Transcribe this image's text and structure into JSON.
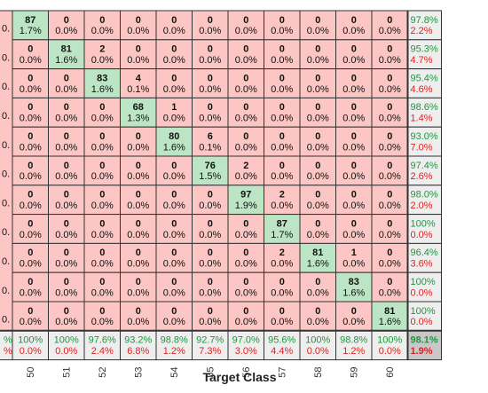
{
  "chart_data": {
    "type": "heatmap",
    "title": "",
    "xlabel": "Target Class",
    "ylabel": "",
    "x_tick_labels": [
      "50",
      "51",
      "52",
      "53",
      "54",
      "55",
      "56",
      "57",
      "58",
      "59",
      "60"
    ],
    "left_edge_cropped_text": "0.",
    "rows": [
      {
        "counts": [
          87,
          0,
          0,
          0,
          0,
          0,
          0,
          0,
          0,
          0,
          0
        ],
        "percents": [
          "1.7%",
          "0.0%",
          "0.0%",
          "0.0%",
          "0.0%",
          "0.0%",
          "0.0%",
          "0.0%",
          "0.0%",
          "0.0%",
          "0.0%"
        ],
        "summary": [
          "97.8%",
          "2.2%"
        ]
      },
      {
        "counts": [
          0,
          81,
          2,
          0,
          0,
          0,
          0,
          0,
          0,
          0,
          0
        ],
        "percents": [
          "0.0%",
          "1.6%",
          "0.0%",
          "0.0%",
          "0.0%",
          "0.0%",
          "0.0%",
          "0.0%",
          "0.0%",
          "0.0%",
          "0.0%"
        ],
        "summary": [
          "95.3%",
          "4.7%"
        ]
      },
      {
        "counts": [
          0,
          0,
          83,
          4,
          0,
          0,
          0,
          0,
          0,
          0,
          0
        ],
        "percents": [
          "0.0%",
          "0.0%",
          "1.6%",
          "0.1%",
          "0.0%",
          "0.0%",
          "0.0%",
          "0.0%",
          "0.0%",
          "0.0%",
          "0.0%"
        ],
        "summary": [
          "95.4%",
          "4.6%"
        ]
      },
      {
        "counts": [
          0,
          0,
          0,
          68,
          1,
          0,
          0,
          0,
          0,
          0,
          0
        ],
        "percents": [
          "0.0%",
          "0.0%",
          "0.0%",
          "1.3%",
          "0.0%",
          "0.0%",
          "0.0%",
          "0.0%",
          "0.0%",
          "0.0%",
          "0.0%"
        ],
        "summary": [
          "98.6%",
          "1.4%"
        ]
      },
      {
        "counts": [
          0,
          0,
          0,
          0,
          80,
          6,
          0,
          0,
          0,
          0,
          0
        ],
        "percents": [
          "0.0%",
          "0.0%",
          "0.0%",
          "0.0%",
          "1.6%",
          "0.1%",
          "0.0%",
          "0.0%",
          "0.0%",
          "0.0%",
          "0.0%"
        ],
        "summary": [
          "93.0%",
          "7.0%"
        ]
      },
      {
        "counts": [
          0,
          0,
          0,
          0,
          0,
          76,
          2,
          0,
          0,
          0,
          0
        ],
        "percents": [
          "0.0%",
          "0.0%",
          "0.0%",
          "0.0%",
          "0.0%",
          "1.5%",
          "0.0%",
          "0.0%",
          "0.0%",
          "0.0%",
          "0.0%"
        ],
        "summary": [
          "97.4%",
          "2.6%"
        ]
      },
      {
        "counts": [
          0,
          0,
          0,
          0,
          0,
          0,
          97,
          2,
          0,
          0,
          0
        ],
        "percents": [
          "0.0%",
          "0.0%",
          "0.0%",
          "0.0%",
          "0.0%",
          "0.0%",
          "1.9%",
          "0.0%",
          "0.0%",
          "0.0%",
          "0.0%"
        ],
        "summary": [
          "98.0%",
          "2.0%"
        ]
      },
      {
        "counts": [
          0,
          0,
          0,
          0,
          0,
          0,
          0,
          87,
          0,
          0,
          0
        ],
        "percents": [
          "0.0%",
          "0.0%",
          "0.0%",
          "0.0%",
          "0.0%",
          "0.0%",
          "0.0%",
          "1.7%",
          "0.0%",
          "0.0%",
          "0.0%"
        ],
        "summary": [
          "100%",
          "0.0%"
        ]
      },
      {
        "counts": [
          0,
          0,
          0,
          0,
          0,
          0,
          0,
          2,
          81,
          1,
          0
        ],
        "percents": [
          "0.0%",
          "0.0%",
          "0.0%",
          "0.0%",
          "0.0%",
          "0.0%",
          "0.0%",
          "0.0%",
          "1.6%",
          "0.0%",
          "0.0%"
        ],
        "summary": [
          "96.4%",
          "3.6%"
        ]
      },
      {
        "counts": [
          0,
          0,
          0,
          0,
          0,
          0,
          0,
          0,
          0,
          83,
          0
        ],
        "percents": [
          "0.0%",
          "0.0%",
          "0.0%",
          "0.0%",
          "0.0%",
          "0.0%",
          "0.0%",
          "0.0%",
          "0.0%",
          "1.6%",
          "0.0%"
        ],
        "summary": [
          "100%",
          "0.0%"
        ]
      },
      {
        "counts": [
          0,
          0,
          0,
          0,
          0,
          0,
          0,
          0,
          0,
          0,
          81
        ],
        "percents": [
          "0.0%",
          "0.0%",
          "0.0%",
          "0.0%",
          "0.0%",
          "0.0%",
          "0.0%",
          "0.0%",
          "0.0%",
          "0.0%",
          "1.6%"
        ],
        "summary": [
          "100%",
          "0.0%"
        ]
      }
    ],
    "bottom_summary": {
      "left_cropped": [
        "%",
        "%"
      ],
      "correct": [
        "100%",
        "100%",
        "97.6%",
        "93.2%",
        "98.8%",
        "92.7%",
        "97.0%",
        "95.6%",
        "100%",
        "98.8%",
        "100%"
      ],
      "wrong": [
        "0.0%",
        "0.0%",
        "2.4%",
        "6.8%",
        "1.2%",
        "7.3%",
        "3.0%",
        "4.4%",
        "0.0%",
        "1.2%",
        "0.0%"
      ],
      "overall": [
        "98.1%",
        "1.9%"
      ]
    },
    "colors": {
      "diagonal": "#bce5c6",
      "off_diagonal": "#fbc6c3",
      "summary": "#eeeeee",
      "overall": "#c8c8c8",
      "correct_text": "#1a9a3a",
      "wrong_text": "#dd2222",
      "grid": "#333333"
    }
  }
}
